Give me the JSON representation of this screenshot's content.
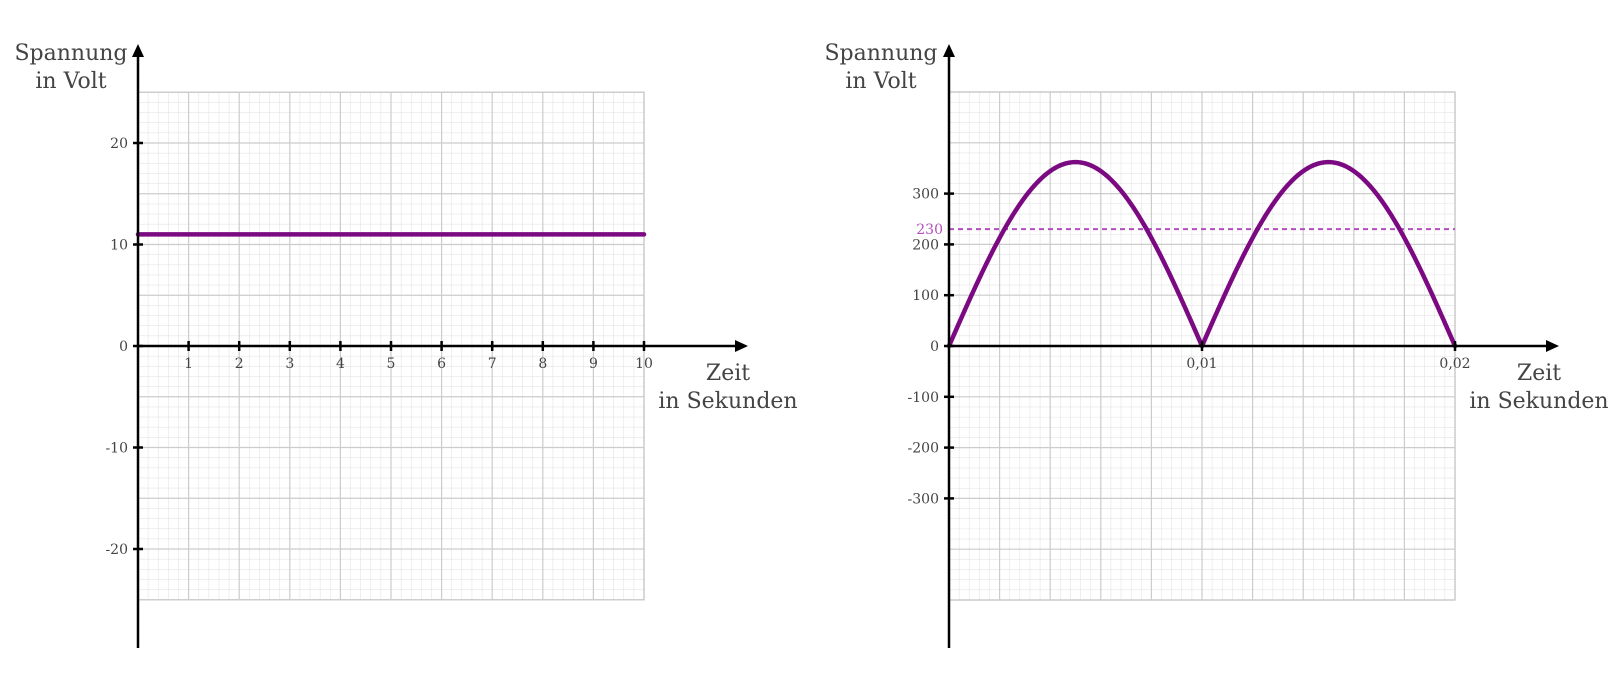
{
  "chart_data": [
    {
      "type": "line",
      "name_hint": "dc",
      "xlabel": [
        "Zeit",
        "in Sekunden"
      ],
      "ylabel": [
        "Spannung",
        "in Volt"
      ],
      "xlim": [
        0,
        10
      ],
      "ylim": [
        -25,
        25
      ],
      "x_ticks": [
        1,
        2,
        3,
        4,
        5,
        6,
        7,
        8,
        9,
        10
      ],
      "x_tick_labels": [
        "1",
        "2",
        "3",
        "4",
        "5",
        "6",
        "7",
        "8",
        "9",
        "10"
      ],
      "y_ticks": [
        -20,
        -10,
        0,
        10,
        20
      ],
      "y_tick_labels": [
        "-20",
        "-10",
        "0",
        "10",
        "20"
      ],
      "grid": true,
      "series": [
        {
          "x": [
            0,
            10
          ],
          "y": [
            11,
            11
          ],
          "color": "#7b0a82"
        }
      ]
    },
    {
      "type": "line",
      "name_hint": "rectified",
      "xlabel": [
        "Zeit",
        "in Sekunden"
      ],
      "ylabel": [
        "Spannung",
        "in Volt"
      ],
      "xlim": [
        0,
        0.02
      ],
      "ylim": [
        -500,
        500
      ],
      "x_ticks": [
        0.01,
        0.02
      ],
      "x_tick_labels": [
        "0,01",
        "0,02"
      ],
      "y_ticks": [
        -300,
        -200,
        -100,
        0,
        100,
        200,
        300
      ],
      "y_tick_labels": [
        "-300",
        "-200",
        "-100",
        "0",
        "100",
        "200",
        "300"
      ],
      "grid": true,
      "series": [
        {
          "function": "abs-sine",
          "amplitude": 362,
          "frequency_hz": 50,
          "x_range": [
            0,
            0.02
          ],
          "color": "#7b0a82"
        }
      ],
      "reference_line": {
        "y": 230,
        "label": "230",
        "color": "#b44dbf",
        "style": "dashed"
      }
    }
  ]
}
